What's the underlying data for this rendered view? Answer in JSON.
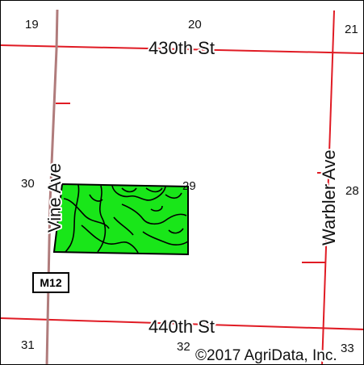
{
  "map": {
    "colors": {
      "section_line": "#e01b24",
      "vine_ave": "#b07c7c",
      "field_fill": "#19e619",
      "field_outline": "#000000",
      "text": "#111111"
    },
    "roads": {
      "north": "430th St",
      "south": "440th St",
      "west": "Vine Ave",
      "east": "Warbler Ave"
    },
    "highway_shield": "M12",
    "sections": {
      "s19": "19",
      "s20": "20",
      "s21": "21",
      "s30": "30",
      "s29": "29",
      "s28": "28",
      "s31": "31",
      "s32": "32",
      "s33": "33"
    },
    "copyright": "©2017 AgriData, Inc."
  }
}
